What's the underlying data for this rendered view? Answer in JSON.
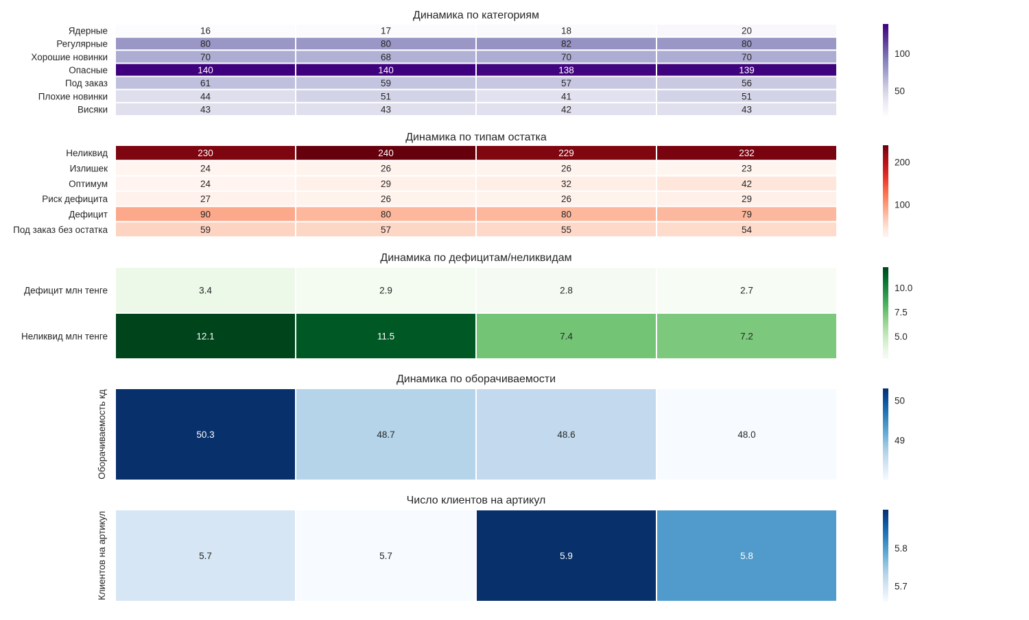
{
  "chart_data": [
    {
      "type": "heatmap",
      "title": "Динамика по категориям",
      "ylabel": "",
      "rows": [
        "Ядерные",
        "Регулярные",
        "Хорошие новинки",
        "Опасные",
        "Под заказ",
        "Плохие новинки",
        "Висяки"
      ],
      "values": [
        [
          16,
          17,
          18,
          20
        ],
        [
          80,
          80,
          82,
          80
        ],
        [
          70,
          68,
          70,
          70
        ],
        [
          140,
          140,
          138,
          139
        ],
        [
          61,
          59,
          57,
          56
        ],
        [
          44,
          51,
          41,
          51
        ],
        [
          43,
          43,
          42,
          43
        ]
      ],
      "value_labels": [
        [
          "16",
          "17",
          "18",
          "20"
        ],
        [
          "80",
          "80",
          "82",
          "80"
        ],
        [
          "70",
          "68",
          "70",
          "70"
        ],
        [
          "140",
          "140",
          "138",
          "139"
        ],
        [
          "61",
          "59",
          "57",
          "56"
        ],
        [
          "44",
          "51",
          "41",
          "51"
        ],
        [
          "43",
          "43",
          "42",
          "43"
        ]
      ],
      "colormap": "Purples",
      "vmin": 16,
      "vmax": 140,
      "colorbar_ticks": [
        "50",
        "100"
      ],
      "colorbar_tick_values": [
        50,
        100
      ]
    },
    {
      "type": "heatmap",
      "title": "Динамика по типам остатка",
      "ylabel": "",
      "rows": [
        "Неликвид",
        "Излишек",
        "Оптимум",
        "Риск дефицита",
        "Дефицит",
        "Под заказ без остатка"
      ],
      "values": [
        [
          230,
          240,
          229,
          232
        ],
        [
          24,
          26,
          26,
          23
        ],
        [
          24,
          29,
          32,
          42
        ],
        [
          27,
          26,
          26,
          29
        ],
        [
          90,
          80,
          80,
          79
        ],
        [
          59,
          57,
          55,
          54
        ]
      ],
      "value_labels": [
        [
          "230",
          "240",
          "229",
          "232"
        ],
        [
          "24",
          "26",
          "26",
          "23"
        ],
        [
          "24",
          "29",
          "32",
          "42"
        ],
        [
          "27",
          "26",
          "26",
          "29"
        ],
        [
          "90",
          "80",
          "80",
          "79"
        ],
        [
          "59",
          "57",
          "55",
          "54"
        ]
      ],
      "colormap": "Reds",
      "vmin": 23,
      "vmax": 240,
      "colorbar_ticks": [
        "100",
        "200"
      ],
      "colorbar_tick_values": [
        100,
        200
      ]
    },
    {
      "type": "heatmap",
      "title": "Динамика по дефицитам/неликвидам",
      "ylabel": "",
      "rows": [
        "Дефицит млн тенге",
        "Неликвид млн тенге"
      ],
      "values": [
        [
          3.4,
          2.9,
          2.8,
          2.7
        ],
        [
          12.1,
          11.5,
          7.4,
          7.2
        ]
      ],
      "value_labels": [
        [
          "3.4",
          "2.9",
          "2.8",
          "2.7"
        ],
        [
          "12.1",
          "11.5",
          "7.4",
          "7.2"
        ]
      ],
      "colormap": "Greens",
      "vmin": 2.7,
      "vmax": 12.1,
      "colorbar_ticks": [
        "5.0",
        "7.5",
        "10.0"
      ],
      "colorbar_tick_values": [
        5.0,
        7.5,
        10.0
      ]
    },
    {
      "type": "heatmap",
      "title": "Динамика по оборачиваемости",
      "ylabel": "Оборачиваемость кд",
      "rows": [
        ""
      ],
      "values": [
        [
          50.3,
          48.7,
          48.6,
          48.0
        ]
      ],
      "value_labels": [
        [
          "50.3",
          "48.7",
          "48.6",
          "48.0"
        ]
      ],
      "colormap": "Blues",
      "vmin": 48.0,
      "vmax": 50.3,
      "colorbar_ticks": [
        "49",
        "50"
      ],
      "colorbar_tick_values": [
        49,
        50
      ]
    },
    {
      "type": "heatmap",
      "title": "Число клиентов на артикул",
      "ylabel": "Клиентов на артикул",
      "rows": [
        ""
      ],
      "values": [
        [
          5.7,
          5.66,
          5.9,
          5.8
        ]
      ],
      "value_labels": [
        [
          "5.7",
          "5.7",
          "5.9",
          "5.8"
        ]
      ],
      "colormap": "Blues",
      "vmin": 5.66,
      "vmax": 5.9,
      "colorbar_ticks": [
        "5.7",
        "5.8"
      ],
      "colorbar_tick_values": [
        5.7,
        5.8
      ]
    }
  ]
}
